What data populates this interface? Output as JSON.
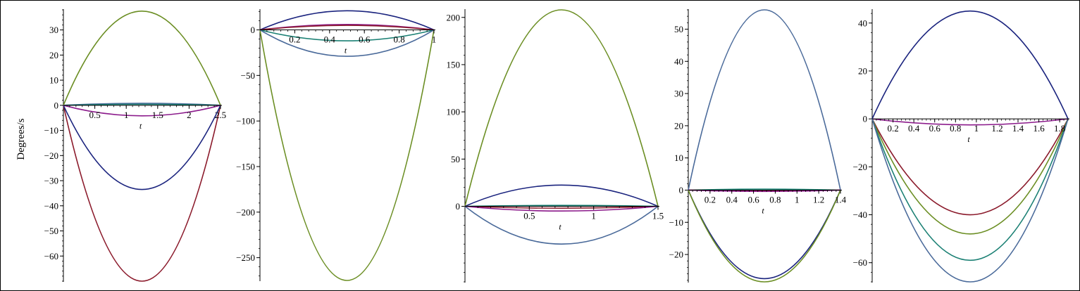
{
  "figure": {
    "ylabel": "Degrees/s",
    "colors": {
      "olive": "#6b8e23",
      "maroon": "#8b1a2b",
      "navy": "#1a237e",
      "slate": "#4a6a9a",
      "teal": "#1b8074",
      "purple": "#8b1a8b"
    }
  },
  "chart_data": [
    {
      "type": "line",
      "xlabel": "t",
      "xlim": [
        0,
        2.5
      ],
      "ylim": [
        -70,
        38
      ],
      "xticks": [
        0.5,
        1,
        1.5,
        2,
        2.5
      ],
      "xtick_labels": [
        "0.5",
        "1",
        "1.5",
        "2",
        "2.5"
      ],
      "yticks": [
        -60,
        -50,
        -40,
        -30,
        -20,
        -10,
        0,
        10,
        20,
        30
      ],
      "ytick_labels": [
        "−60",
        "−50",
        "−40",
        "−30",
        "−20",
        "−10",
        "0",
        "10",
        "20",
        "30"
      ],
      "series": [
        {
          "color": "#6b8e23",
          "peak": 37.5,
          "peak_x": 1.25
        },
        {
          "color": "#8b1a2b",
          "peak": -70,
          "peak_x": 1.25
        },
        {
          "color": "#1a237e",
          "peak": -33.5,
          "peak_x": 1.25
        },
        {
          "color": "#4a6a9a",
          "peak": 0.8,
          "peak_x": 1.25
        },
        {
          "color": "#1b8074",
          "peak": 0.4,
          "peak_x": 1.25
        },
        {
          "color": "#8b1a8b",
          "peak": -4.2,
          "peak_x": 1.25
        }
      ]
    },
    {
      "type": "line",
      "xlabel": "t",
      "xlim": [
        0,
        1
      ],
      "ylim": [
        -275,
        22
      ],
      "xticks": [
        0.2,
        0.4,
        0.6,
        0.8,
        1
      ],
      "xtick_labels": [
        "0.2",
        "0.4",
        "0.6",
        "0.8",
        "1"
      ],
      "yticks": [
        -250,
        -200,
        -150,
        -100,
        -50,
        0
      ],
      "ytick_labels": [
        "−250",
        "−200",
        "−150",
        "−100",
        "−50",
        "0"
      ],
      "series": [
        {
          "color": "#6b8e23",
          "peak": -275,
          "peak_x": 0.5
        },
        {
          "color": "#1a237e",
          "peak": 21,
          "peak_x": 0.5
        },
        {
          "color": "#8b1a8b",
          "peak": 6,
          "peak_x": 0.5
        },
        {
          "color": "#8b1a2b",
          "peak": 5,
          "peak_x": 0.5
        },
        {
          "color": "#1b8074",
          "peak": -12,
          "peak_x": 0.5
        },
        {
          "color": "#4a6a9a",
          "peak": -29,
          "peak_x": 0.5
        }
      ]
    },
    {
      "type": "line",
      "xlabel": "t",
      "xlim": [
        0,
        1.5
      ],
      "ylim": [
        -80,
        208
      ],
      "xticks": [
        0.5,
        1,
        1.5
      ],
      "xtick_labels": [
        "0.5",
        "1",
        "1.5"
      ],
      "yticks": [
        0,
        50,
        100,
        150,
        200
      ],
      "ytick_labels": [
        "0",
        "50",
        "100",
        "150",
        "200"
      ],
      "series": [
        {
          "color": "#6b8e23",
          "peak": 208,
          "peak_x": 0.75
        },
        {
          "color": "#1a237e",
          "peak": 22.5,
          "peak_x": 0.75
        },
        {
          "color": "#1b8074",
          "peak": 1,
          "peak_x": 0.75
        },
        {
          "color": "#8b1a2b",
          "peak": -2,
          "peak_x": 0.75
        },
        {
          "color": "#8b1a8b",
          "peak": -5,
          "peak_x": 0.75
        },
        {
          "color": "#4a6a9a",
          "peak": -40,
          "peak_x": 0.75
        }
      ]
    },
    {
      "type": "line",
      "xlabel": "t",
      "xlim": [
        0,
        1.4
      ],
      "ylim": [
        -28.5,
        56
      ],
      "xticks": [
        0.2,
        0.4,
        0.6,
        0.8,
        1,
        1.2,
        1.4
      ],
      "xtick_labels": [
        "0.2",
        "0.4",
        "0.6",
        "0.8",
        "1",
        "1.2",
        "1.4"
      ],
      "yticks": [
        -20,
        -10,
        0,
        10,
        20,
        30,
        40,
        50
      ],
      "ytick_labels": [
        "−20",
        "−10",
        "0",
        "10",
        "20",
        "30",
        "40",
        "50"
      ],
      "series": [
        {
          "color": "#4a6a9a",
          "peak": 56,
          "peak_x": 0.7
        },
        {
          "color": "#1b8074",
          "peak": 0.3,
          "peak_x": 0.7
        },
        {
          "color": "#8b1a2b",
          "peak": -0.2,
          "peak_x": 0.7
        },
        {
          "color": "#8b1a8b",
          "peak": -0.4,
          "peak_x": 0.7
        },
        {
          "color": "#1a237e",
          "peak": -27.5,
          "peak_x": 0.7
        },
        {
          "color": "#6b8e23",
          "peak": -28.5,
          "peak_x": 0.7
        }
      ]
    },
    {
      "type": "line",
      "xlabel": "t",
      "xlim": [
        0,
        1.88
      ],
      "ylim": [
        -68,
        45.5
      ],
      "xticks": [
        0.2,
        0.4,
        0.6,
        0.8,
        1,
        1.2,
        1.4,
        1.6,
        1.8
      ],
      "xtick_labels": [
        "0.2",
        "0.4",
        "0.6",
        "0.8",
        "1",
        "1.2",
        "1.4",
        "1.6",
        "1.8"
      ],
      "yticks": [
        -60,
        -40,
        -20,
        0,
        20,
        40
      ],
      "ytick_labels": [
        "−60",
        "−40",
        "−20",
        "0",
        "20",
        "40"
      ],
      "series": [
        {
          "color": "#1a237e",
          "peak": 45,
          "peak_x": 0.94
        },
        {
          "color": "#8b1a8b",
          "peak": -2.5,
          "peak_x": 0.94
        },
        {
          "color": "#8b1a2b",
          "peak": -40,
          "peak_x": 0.94
        },
        {
          "color": "#6b8e23",
          "peak": -48,
          "peak_x": 0.94
        },
        {
          "color": "#1b8074",
          "peak": -59,
          "peak_x": 0.94
        },
        {
          "color": "#4a6a9a",
          "peak": -68,
          "peak_x": 0.94
        }
      ]
    }
  ]
}
